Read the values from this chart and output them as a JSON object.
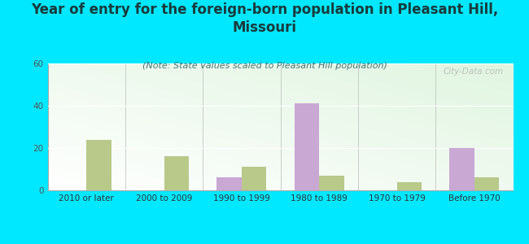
{
  "title": "Year of entry for the foreign-born population in Pleasant Hill,\nMissouri",
  "subtitle": "(Note: State values scaled to Pleasant Hill population)",
  "categories": [
    "2010 or later",
    "2000 to 2009",
    "1990 to 1999",
    "1980 to 1989",
    "1970 to 1979",
    "Before 1970"
  ],
  "pleasant_hill": [
    0,
    0,
    6,
    41,
    0,
    20
  ],
  "missouri": [
    24,
    16,
    11,
    7,
    4,
    6
  ],
  "ph_color": "#c9a8d4",
  "mo_color": "#b8c98a",
  "ylim": [
    0,
    60
  ],
  "yticks": [
    0,
    20,
    40,
    60
  ],
  "background_color": "#00e8ff",
  "title_color": "#1a3a3a",
  "title_fontsize": 12,
  "subtitle_fontsize": 8,
  "tick_fontsize": 7.5,
  "legend_fontsize": 9,
  "watermark": "City-Data.com"
}
